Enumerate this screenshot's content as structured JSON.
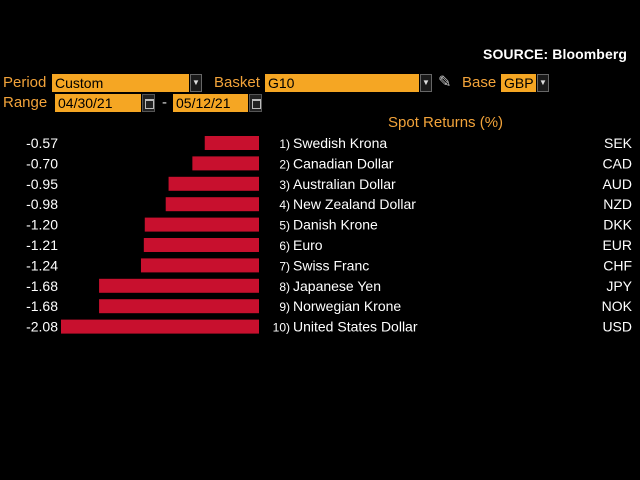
{
  "source_label": "SOURCE: Bloomberg",
  "controls": {
    "period_label": "Period",
    "period_value": "Custom",
    "basket_label": "Basket",
    "basket_value": "G10",
    "base_label": "Base",
    "base_value": "GBP",
    "range_label": "Range",
    "range_start": "04/30/21",
    "range_end": "05/12/21",
    "range_separator": "-"
  },
  "chart_data": {
    "type": "bar",
    "title": "Spot Returns (%)",
    "orientation": "horizontal",
    "bar_color": "#c8102e",
    "xlim": [
      -2.08,
      0
    ],
    "rows": [
      {
        "rank": "1)",
        "name": "Swedish Krona",
        "code": "SEK",
        "value": -0.57,
        "value_label": "-0.57"
      },
      {
        "rank": "2)",
        "name": "Canadian Dollar",
        "code": "CAD",
        "value": -0.7,
        "value_label": "-0.70"
      },
      {
        "rank": "3)",
        "name": "Australian Dollar",
        "code": "AUD",
        "value": -0.95,
        "value_label": "-0.95"
      },
      {
        "rank": "4)",
        "name": "New Zealand Dollar",
        "code": "NZD",
        "value": -0.98,
        "value_label": "-0.98"
      },
      {
        "rank": "5)",
        "name": "Danish Krone",
        "code": "DKK",
        "value": -1.2,
        "value_label": "-1.20"
      },
      {
        "rank": "6)",
        "name": "Euro",
        "code": "EUR",
        "value": -1.21,
        "value_label": "-1.21"
      },
      {
        "rank": "7)",
        "name": "Swiss Franc",
        "code": "CHF",
        "value": -1.24,
        "value_label": "-1.24"
      },
      {
        "rank": "8)",
        "name": "Japanese Yen",
        "code": "JPY",
        "value": -1.68,
        "value_label": "-1.68"
      },
      {
        "rank": "9)",
        "name": "Norwegian Krone",
        "code": "NOK",
        "value": -1.68,
        "value_label": "-1.68"
      },
      {
        "rank": "10)",
        "name": "United States Dollar",
        "code": "USD",
        "value": -2.08,
        "value_label": "-2.08"
      }
    ]
  }
}
